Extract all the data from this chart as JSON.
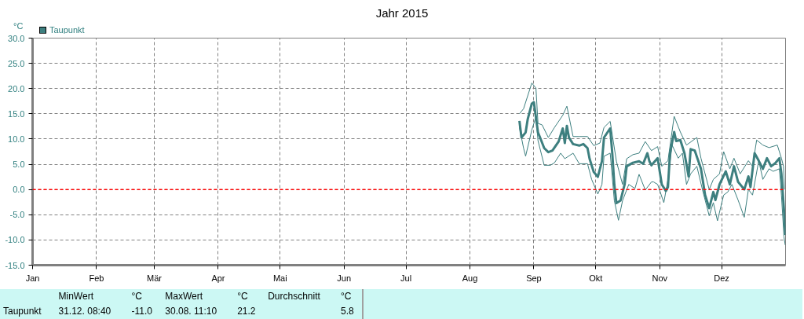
{
  "chart_data": {
    "type": "line",
    "title": "Jahr 2015",
    "ylabel": "°C",
    "legend": "top left",
    "grid": true,
    "line_style": "solid",
    "marker": "none",
    "xlim": [
      "2015-01-01",
      "2016-01-01"
    ],
    "xticks": [
      {
        "value": "2015-01-01",
        "label": "Jan"
      },
      {
        "value": "2015-02-01",
        "label": "Feb"
      },
      {
        "value": "2015-03-01",
        "label": "Mär"
      },
      {
        "value": "2015-04-01",
        "label": "Apr"
      },
      {
        "value": "2015-05-01",
        "label": "Mai"
      },
      {
        "value": "2015-06-01",
        "label": "Jun"
      },
      {
        "value": "2015-07-01",
        "label": "Jul"
      },
      {
        "value": "2015-08-01",
        "label": "Aug"
      },
      {
        "value": "2015-09-01",
        "label": "Sep"
      },
      {
        "value": "2015-10-01",
        "label": "Okt"
      },
      {
        "value": "2015-11-01",
        "label": "Nov"
      },
      {
        "value": "2015-12-01",
        "label": "Dez"
      }
    ],
    "ylim": [
      -15,
      30
    ],
    "yticks": [
      {
        "value": -15,
        "label": "-15.0"
      },
      {
        "value": -10,
        "label": "-10.0"
      },
      {
        "value": -5,
        "label": "-5.0"
      },
      {
        "value": 0,
        "label": "0.0"
      },
      {
        "value": 5,
        "label": "5.0"
      },
      {
        "value": 10,
        "label": "10.0"
      },
      {
        "value": 15,
        "label": "15.0"
      },
      {
        "value": 20,
        "label": "20.0"
      },
      {
        "value": 25,
        "label": "25.0"
      },
      {
        "value": 30,
        "label": "30.0"
      }
    ],
    "ref_lines": [
      {
        "axis": "y",
        "value": 0,
        "color": "#ff0000",
        "line_style": "dashed"
      }
    ],
    "series": [
      {
        "color": "#3d7f7f",
        "x": [
          "2015-08-25",
          "2015-08-27",
          "2015-08-31",
          "2015-09-02",
          "2015-09-03",
          "2015-09-05",
          "2015-09-08",
          "2015-09-11",
          "2015-09-15",
          "2015-09-17",
          "2015-09-20",
          "2015-09-23",
          "2015-09-27",
          "2015-09-30",
          "2015-10-03",
          "2015-10-05",
          "2015-10-08",
          "2015-10-11",
          "2015-10-14",
          "2015-10-16",
          "2015-10-19",
          "2015-10-22",
          "2015-10-25",
          "2015-10-28",
          "2015-10-31",
          "2015-11-02",
          "2015-11-05",
          "2015-11-08",
          "2015-11-11",
          "2015-11-14",
          "2015-11-19",
          "2015-11-21",
          "2015-11-25",
          "2015-11-27",
          "2015-11-30",
          "2015-12-02",
          "2015-12-05",
          "2015-12-07",
          "2015-12-10",
          "2015-12-14",
          "2015-12-16",
          "2015-12-18",
          "2015-12-21",
          "2015-12-24",
          "2015-12-28",
          "2015-12-30",
          "2015-12-31T00:00",
          "2015-12-31T12:00"
        ],
        "values": [
          15.0,
          16.0,
          21.1,
          20.1,
          13.1,
          12.8,
          10.3,
          12.3,
          14.7,
          16.5,
          10.5,
          10.5,
          10.5,
          8.7,
          9.2,
          12.3,
          13.5,
          5.6,
          1.0,
          6.1,
          6.9,
          7.2,
          9.5,
          7.7,
          8.5,
          4.6,
          5.7,
          14.5,
          11.4,
          8.8,
          10.3,
          6.2,
          0.0,
          2.0,
          3.1,
          7.5,
          4.1,
          6.2,
          3.1,
          5.7,
          4.6,
          9.8,
          8.8,
          8.3,
          8.8,
          6.2,
          4.6,
          0.0
        ]
      },
      {
        "name": "Taupunkt",
        "color": "#3d7f7f",
        "x": [
          "2015-08-25",
          "2015-08-26",
          "2015-08-28",
          "2015-08-29",
          "2015-08-31",
          "2015-09-01",
          "2015-09-03",
          "2015-09-04",
          "2015-09-06",
          "2015-09-08",
          "2015-09-10",
          "2015-09-13",
          "2015-09-15",
          "2015-09-16",
          "2015-09-17",
          "2015-09-18",
          "2015-09-20",
          "2015-09-23",
          "2015-09-25",
          "2015-09-27",
          "2015-09-28",
          "2015-09-30",
          "2015-10-02",
          "2015-10-04",
          "2015-10-05",
          "2015-10-08",
          "2015-10-09",
          "2015-10-10",
          "2015-10-11",
          "2015-10-13",
          "2015-10-15",
          "2015-10-16",
          "2015-10-19",
          "2015-10-22",
          "2015-10-24",
          "2015-10-26",
          "2015-10-27",
          "2015-10-28",
          "2015-10-31",
          "2015-11-02",
          "2015-11-04",
          "2015-11-05",
          "2015-11-06",
          "2015-11-08",
          "2015-11-09",
          "2015-11-11",
          "2015-11-13",
          "2015-11-15",
          "2015-11-16",
          "2015-11-18",
          "2015-11-21",
          "2015-11-23",
          "2015-11-25",
          "2015-11-27",
          "2015-11-28",
          "2015-11-30",
          "2015-12-03",
          "2015-12-05",
          "2015-12-07",
          "2015-12-09",
          "2015-12-12",
          "2015-12-14",
          "2015-12-15",
          "2015-12-17",
          "2015-12-19",
          "2015-12-21",
          "2015-12-23",
          "2015-12-25",
          "2015-12-27",
          "2015-12-29",
          "2015-12-30",
          "2015-12-31T06:00",
          "2015-12-31T20:00"
        ],
        "values": [
          13.6,
          10.3,
          11.3,
          13.9,
          17.0,
          17.3,
          11.3,
          10.3,
          8.2,
          7.4,
          7.7,
          9.5,
          12.1,
          9.2,
          12.6,
          10.3,
          9.0,
          8.7,
          9.0,
          8.2,
          6.1,
          3.5,
          2.5,
          5.6,
          10.3,
          12.1,
          7.2,
          1.0,
          -2.7,
          -2.2,
          1.0,
          4.6,
          5.3,
          5.6,
          5.1,
          7.2,
          5.6,
          4.8,
          6.2,
          1.0,
          -0.3,
          0.5,
          7.2,
          11.4,
          9.6,
          9.8,
          7.2,
          2.6,
          8.0,
          7.7,
          4.1,
          -1.1,
          -3.7,
          -0.5,
          -2.1,
          1.0,
          3.6,
          1.0,
          4.6,
          1.5,
          0.0,
          2.6,
          0.5,
          7.2,
          5.7,
          4.1,
          6.2,
          4.6,
          5.2,
          6.2,
          3.1,
          -4.2,
          -9.0
        ]
      },
      {
        "color": "#3d7f7f",
        "x": [
          "2015-08-25",
          "2015-08-27",
          "2015-08-28",
          "2015-08-31",
          "2015-09-02",
          "2015-09-03",
          "2015-09-06",
          "2015-09-09",
          "2015-09-11",
          "2015-09-14",
          "2015-09-16",
          "2015-09-20",
          "2015-09-23",
          "2015-09-27",
          "2015-09-29",
          "2015-10-02",
          "2015-10-04",
          "2015-10-05",
          "2015-10-08",
          "2015-10-10",
          "2015-10-12",
          "2015-10-14",
          "2015-10-17",
          "2015-10-20",
          "2015-10-22",
          "2015-10-25",
          "2015-10-28",
          "2015-10-29",
          "2015-10-31",
          "2015-11-03",
          "2015-11-05",
          "2015-11-07",
          "2015-11-10",
          "2015-11-12",
          "2015-11-14",
          "2015-11-16",
          "2015-11-19",
          "2015-11-22",
          "2015-11-25",
          "2015-11-27",
          "2015-11-29",
          "2015-12-02",
          "2015-12-04",
          "2015-12-06",
          "2015-12-09",
          "2015-12-12",
          "2015-12-14",
          "2015-12-16",
          "2015-12-19",
          "2015-12-21",
          "2015-12-24",
          "2015-12-26",
          "2015-12-29",
          "2015-12-30",
          "2015-12-31T06:00",
          "2015-12-31T20:00"
        ],
        "values": [
          12.3,
          8.2,
          6.6,
          11.8,
          14.4,
          9.7,
          4.8,
          4.8,
          5.3,
          7.2,
          6.1,
          7.2,
          5.1,
          5.1,
          2.0,
          -0.9,
          1.0,
          6.6,
          7.2,
          -2.2,
          -6.1,
          -2.2,
          1.0,
          0.2,
          3.0,
          -0.1,
          1.5,
          1.5,
          1.0,
          -2.6,
          2.0,
          8.8,
          6.2,
          7.2,
          1.0,
          3.1,
          4.6,
          -0.5,
          -5.2,
          -2.6,
          -6.2,
          -1.1,
          -0.5,
          1.0,
          -2.1,
          -5.5,
          0.0,
          -1.1,
          5.7,
          2.0,
          4.1,
          3.6,
          4.1,
          -1.1,
          -9.4,
          -11.0
        ]
      }
    ],
    "annotations": [
      "Taupunkt",
      "MinWert",
      "°C",
      "31.12.  08:40",
      "-11.0",
      "MaxWert",
      "°C",
      "30.08.  11:10",
      "21.2",
      "Durchschnitt",
      "°C",
      "5.8"
    ]
  }
}
